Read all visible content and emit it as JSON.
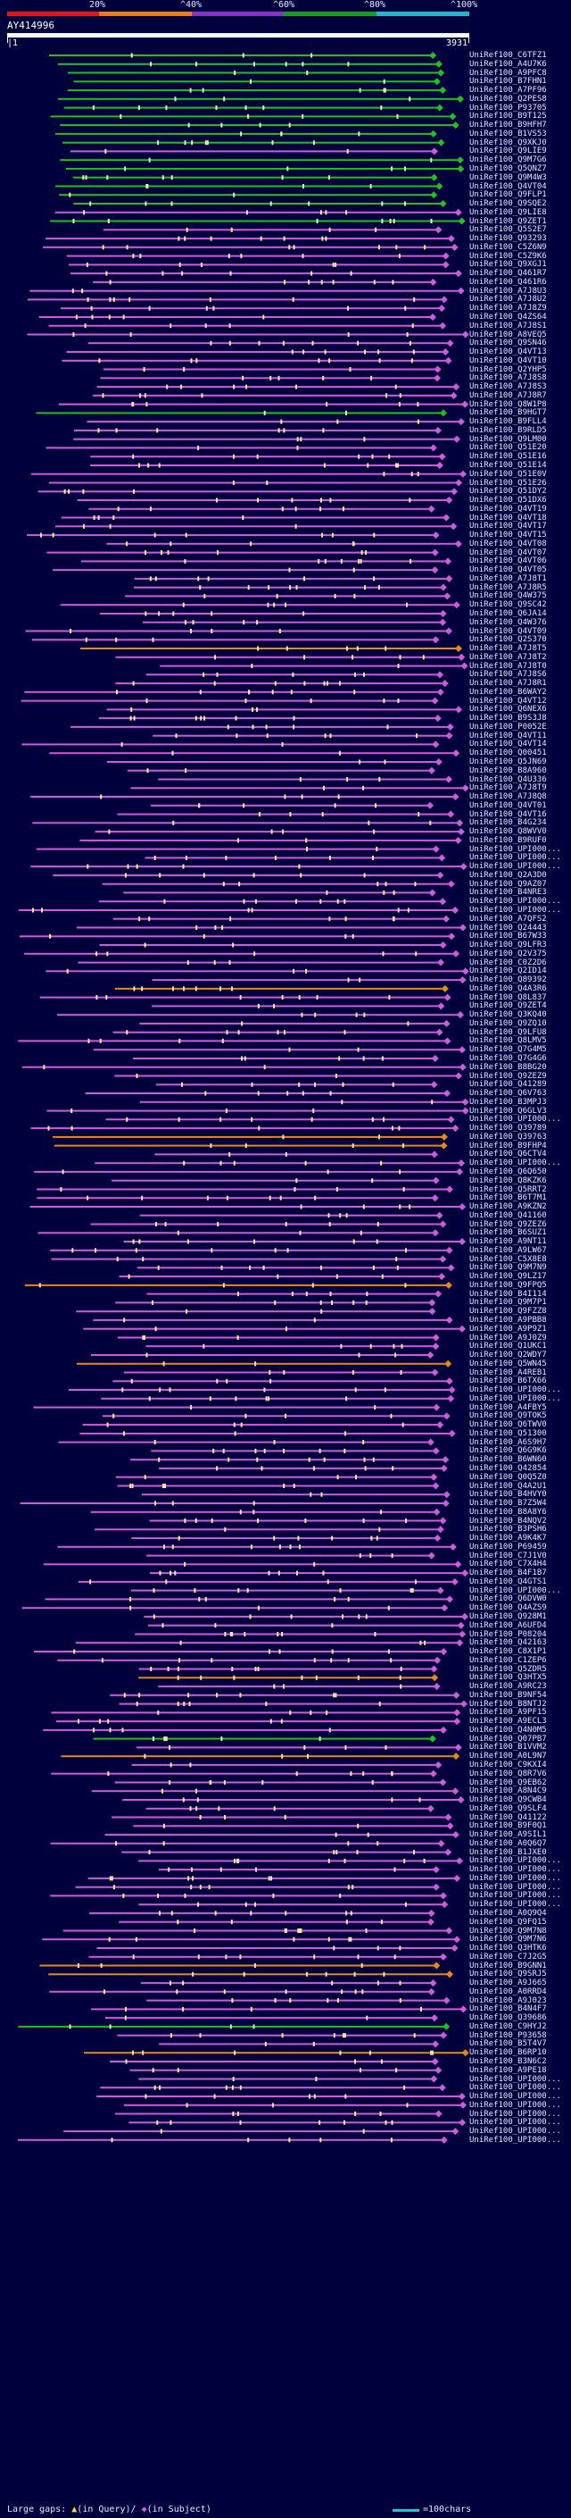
{
  "header": {
    "percent_labels": [
      "20%",
      "^40%",
      "^60%",
      "^80%",
      "^100%"
    ],
    "colors": [
      "#e8121a",
      "#f07d12",
      "#8b2fc9",
      "#0fa11d",
      "#20b8cc"
    ],
    "query_name": "AY414996",
    "start_label": "|1",
    "end_label": "3931"
  },
  "palette": {
    "green": "#1ec21e",
    "magenta": "#d05ad9",
    "orange": "#e8861e",
    "gap_mark": "#ffe9a6",
    "query_bar": "#f4f4f4"
  },
  "hits": [
    "UniRef100_C6TFZ1",
    "UniRef100_A4U7K6",
    "UniRef100_A9PFC8",
    "UniRef100_B7FHN1",
    "UniRef100_A7PF96",
    "UniRef100_Q2PES8",
    "UniRef100_P93705",
    "UniRef100_B9T125",
    "UniRef100_B9HFH7",
    "UniRef100_B1VS53",
    "UniRef100_Q9XKJ0",
    "UniRef100_Q9LIE9",
    "UniRef100_Q9M7G6",
    "UniRef100_Q5QNZ7",
    "UniRef100_Q9M4W3",
    "UniRef100_Q4VT04",
    "UniRef100_Q9FLP1",
    "UniRef100_Q9SQE2",
    "UniRef100_Q9LIE8",
    "UniRef100_Q9ZET1",
    "UniRef100_Q5S2E7",
    "UniRef100_Q93293",
    "UniRef100_C5Z6N9",
    "UniRef100_C5Z9K6",
    "UniRef100_Q9XGJ1",
    "UniRef100_Q461R7",
    "UniRef100_Q461R6",
    "UniRef100_A7J8U3",
    "UniRef100_A7J8U2",
    "UniRef100_A7J8Z9",
    "UniRef100_Q4ZS64",
    "UniRef100_A7J8S1",
    "UniRef100_A8VEQ5",
    "UniRef100_Q9SN46",
    "UniRef100_Q4VT13",
    "UniRef100_Q4VT10",
    "UniRef100_Q2YHP5",
    "UniRef100_A7J8S8",
    "UniRef100_A7J8S3",
    "UniRef100_A7J8R7",
    "UniRef100_Q8W1P8",
    "UniRef100_B9HGT7",
    "UniRef100_B9FLL4",
    "UniRef100_B9RLD5",
    "UniRef100_Q9LM00",
    "UniRef100_Q51E20",
    "UniRef100_Q51E16",
    "UniRef100_Q51E14",
    "UniRef100_Q51E0V",
    "UniRef100_Q51E26",
    "UniRef100_Q51DY2",
    "UniRef100_Q51DX6",
    "UniRef100_Q4VT19",
    "UniRef100_Q4VT18",
    "UniRef100_Q4VT17",
    "UniRef100_Q4VT15",
    "UniRef100_Q4VT08",
    "UniRef100_Q4VT07",
    "UniRef100_Q4VT06",
    "UniRef100_Q4VT05",
    "UniRef100_A7J8T1",
    "UniRef100_A7J8R5",
    "UniRef100_Q4W375",
    "UniRef100_Q9SC42",
    "UniRef100_Q6JA14",
    "UniRef100_Q4W376",
    "UniRef100_Q4VT09",
    "UniRef100_Q2S370",
    "UniRef100_A7J8T5",
    "UniRef100_A7J8T2",
    "UniRef100_A7J8T0",
    "UniRef100_A7J8S6",
    "UniRef100_A7J8R1",
    "UniRef100_B6WAY2",
    "UniRef100_Q4VT12",
    "UniRef100_Q6NEX6",
    "UniRef100_B9S3J8",
    "UniRef100_P0052E",
    "UniRef100_Q4VT11",
    "UniRef100_Q4VT14",
    "UniRef100_Q00451",
    "UniRef100_Q5JN69",
    "UniRef100_B8A960",
    "UniRef100_Q4U336",
    "UniRef100_A7J8T9",
    "UniRef100_A7J8Q8",
    "UniRef100_Q4VT01",
    "UniRef100_Q4VT16",
    "UniRef100_B4G234",
    "UniRef100_Q8WVV0",
    "UniRef100_B9RUF0",
    "UniRef100_UPI000...",
    "UniRef100_UPI000...",
    "UniRef100_UPI000...",
    "UniRef100_Q2A3D0",
    "UniRef100_Q9AZ07",
    "UniRef100_B4NRE3",
    "UniRef100_UPI000...",
    "UniRef100_UPI000...",
    "UniRef100_A7QFS2",
    "UniRef100_Q24443",
    "UniRef100_B67W33",
    "UniRef100_Q9LFR3",
    "UniRef100_Q2V375",
    "UniRef100_C0Z2D6",
    "UniRef100_Q2ID14",
    "UniRef100_Q89392",
    "UniRef100_Q4A3R6",
    "UniRef100_Q8L837",
    "UniRef100_Q9ZET4",
    "UniRef100_Q3KQ40",
    "UniRef100_Q9ZQ10",
    "UniRef100_Q9LFU8",
    "UniRef100_Q8LMV5",
    "UniRef100_Q7G4M5",
    "UniRef100_Q7G4G6",
    "UniRef100_B8BG20",
    "UniRef100_Q9ZEZ9",
    "UniRef100_Q41289",
    "UniRef100_Q6V763",
    "UniRef100_B3MPJ3",
    "UniRef100_Q6GLV3",
    "UniRef100_UPI000...",
    "UniRef100_Q39789",
    "UniRef100_Q39763",
    "UniRef100_B9FHP4",
    "UniRef100_Q6CTV4",
    "UniRef100_UPI000...",
    "UniRef100_Q6Q650",
    "UniRef100_Q8KZK6",
    "UniRef100_Q5RRT2",
    "UniRef100_B6T7M1",
    "UniRef100_A9KZN2",
    "UniRef100_Q41160",
    "UniRef100_Q9ZEZ6",
    "UniRef100_B6SUZ1",
    "UniRef100_A9NT11",
    "UniRef100_A9LW67",
    "UniRef100_C5X8E8",
    "UniRef100_Q9M7N9",
    "UniRef100_Q9LZ17",
    "UniRef100_Q9FPQ5",
    "UniRef100_B4I114",
    "UniRef100_Q9M7P1",
    "UniRef100_Q9FZZ8",
    "UniRef100_A9PBB8",
    "UniRef100_A9P9Z1",
    "UniRef100_A9J0Z9",
    "UniRef100_Q1UKC1",
    "UniRef100_Q2WDY7",
    "UniRef100_Q5WN45",
    "UniRef100_A4REB1",
    "UniRef100_B6TX66",
    "UniRef100_UPI000...",
    "UniRef100_UPI000...",
    "UniRef100_A4FBY5",
    "UniRef100_Q9TOK5",
    "UniRef100_Q6TWV0",
    "UniRef100_Q51300",
    "UniRef100_A6S9H7",
    "UniRef100_Q6G9K6",
    "UniRef100_B6WN60",
    "UniRef100_Q42854",
    "UniRef100_Q0Q5Z0",
    "UniRef100_Q4A2U1",
    "UniRef100_B4HVY0",
    "UniRef100_B7Z5W4",
    "UniRef100_B8A8Y6",
    "UniRef100_B4NQV2",
    "UniRef100_B3PSH6",
    "UniRef100_A9K4K7",
    "UniRef100_P69459",
    "UniRef100_C7J1V0",
    "UniRef100_C7X4H4",
    "UniRef100_B4F1B7",
    "UniRef100_Q4GTS1",
    "UniRef100_UPI000...",
    "UniRef100_Q6DVW0",
    "UniRef100_Q4AZS9",
    "UniRef100_Q928M1",
    "UniRef100_A6UFD4",
    "UniRef100_P08204",
    "UniRef100_Q42163",
    "UniRef100_C8X1P1",
    "UniRef100_C1ZEP6",
    "UniRef100_Q5ZDR5",
    "UniRef100_Q3HTX5",
    "UniRef100_A9RC23",
    "UniRef100_B9NF54",
    "UniRef100_B8NTJ2",
    "UniRef100_A9PF15",
    "UniRef100_A9ECL3",
    "UniRef100_Q4N0M5",
    "UniRef100_Q07PB7",
    "UniRef100_B1VVM2",
    "UniRef100_A0L9N7",
    "UniRef100_C9KXI4",
    "UniRef100_Q8R7V6",
    "UniRef100_Q9EB62",
    "UniRef100_A8N4C9",
    "UniRef100_Q9CWB4",
    "UniRef100_Q9SLF4",
    "UniRef100_Q41122",
    "UniRef100_B9F0Q1",
    "UniRef100_A9SIL1",
    "UniRef100_A0Q6Q7",
    "UniRef100_B1JXE0",
    "UniRef100_UPI000...",
    "UniRef100_UPI000...",
    "UniRef100_UPI000...",
    "UniRef100_UPI000...",
    "UniRef100_UPI000...",
    "UniRef100_UPI000...",
    "UniRef100_A0Q9Q4",
    "UniRef100_Q9FQ15",
    "UniRef100_Q9M7N8",
    "UniRef100_Q9M7N6",
    "UniRef100_Q3HTK6",
    "UniRef100_C7J2G5",
    "UniRef100_B9GNN1",
    "UniRef100_Q9SRJ5",
    "UniRef100_A9J665",
    "UniRef100_A0RRD4",
    "UniRef100_A9J023",
    "UniRef100_B4N4F7",
    "UniRef100_Q39686",
    "UniRef100_C9HYJ2",
    "UniRef100_P93658",
    "UniRef100_B5T4V7",
    "UniRef100_B6RP10",
    "UniRef100_B3N6C2",
    "UniRef100_A9PE18",
    "UniRef100_UPI000...",
    "UniRef100_UPI000...",
    "UniRef100_UPI000...",
    "UniRef100_UPI000...",
    "UniRef100_UPI000...",
    "UniRef100_UPI000...",
    "UniRef100_UPI000...",
    "UniRef100_UPI000..."
  ],
  "footer": {
    "large_gaps_label": "Large gaps:",
    "gap_flag": "▲",
    "in_query_text": "(in Query)/",
    "in_subject_flag": "◆",
    "in_subject_text": "(in Subject)",
    "scale_label": "=100chars"
  }
}
